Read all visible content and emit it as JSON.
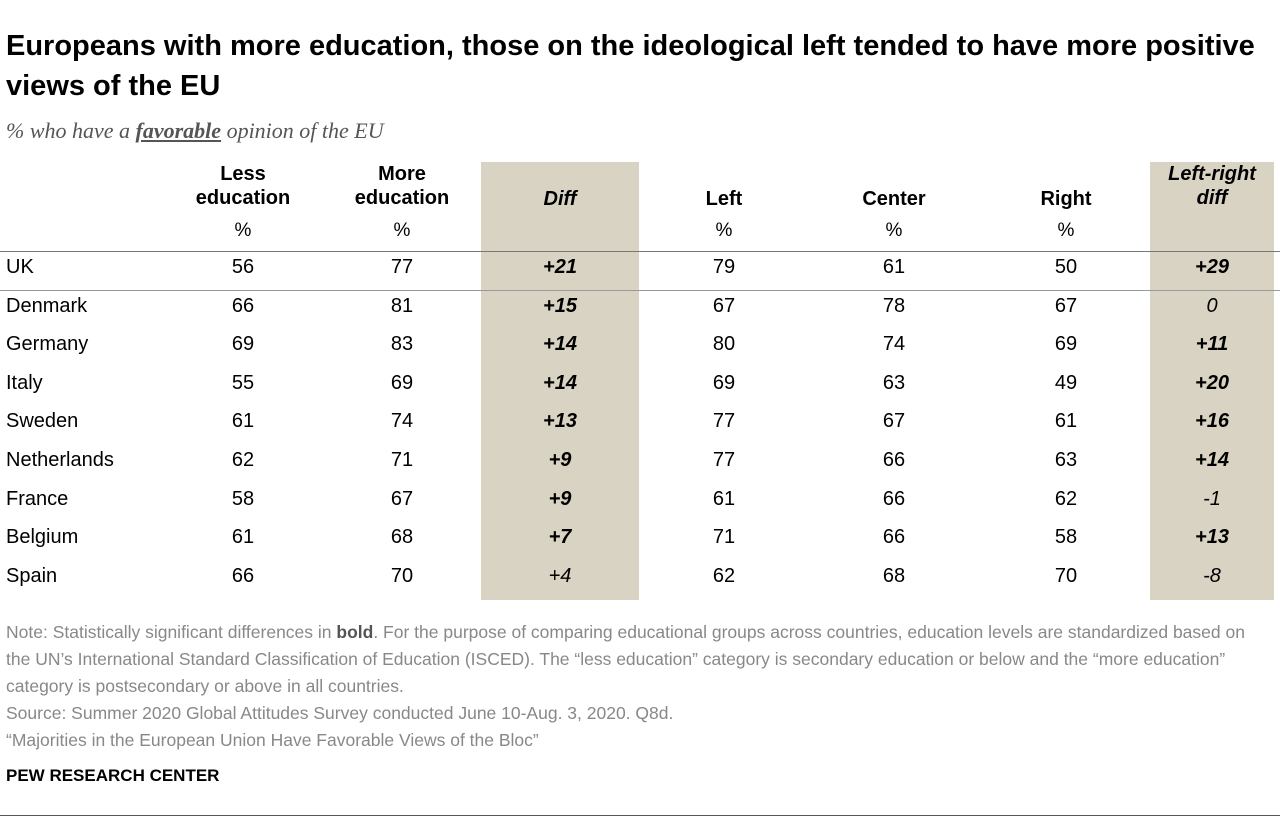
{
  "title": "Europeans with more education, those on the ideological left tended to have more positive views of the EU",
  "subtitle": {
    "before": "% who have a ",
    "keyword": "favorable",
    "after": " opinion of the EU"
  },
  "columns": [
    {
      "key": "less_edu",
      "label": "Less\neducation",
      "unit": "%",
      "shaded": false,
      "italic": false
    },
    {
      "key": "more_edu",
      "label": "More\neducation",
      "unit": "%",
      "shaded": false,
      "italic": false
    },
    {
      "key": "edu_diff",
      "label": "Diff",
      "unit": "",
      "shaded": true,
      "italic": true
    },
    {
      "key": "left",
      "label": "Left",
      "unit": "%",
      "shaded": false,
      "italic": false
    },
    {
      "key": "center",
      "label": "Center",
      "unit": "%",
      "shaded": false,
      "italic": false
    },
    {
      "key": "right",
      "label": "Right",
      "unit": "%",
      "shaded": false,
      "italic": false
    },
    {
      "key": "lr_diff",
      "label": "Left-right\ndiff",
      "unit": "",
      "shaded": true,
      "italic": true
    }
  ],
  "chart_data": {
    "type": "table",
    "title": "Europeans with more education, those on the ideological left tended to have more positive views of the EU",
    "subtitle": "% who have a favorable opinion of the EU",
    "headers": [
      "Less education",
      "More education",
      "Diff",
      "Left",
      "Center",
      "Right",
      "Left-right diff"
    ],
    "rows": [
      {
        "country": "UK",
        "values": [
          "56",
          "77",
          "+21",
          "79",
          "61",
          "50",
          "+29"
        ],
        "sig": [
          false,
          false,
          true,
          false,
          false,
          false,
          true
        ]
      },
      {
        "country": "Denmark",
        "values": [
          "66",
          "81",
          "+15",
          "67",
          "78",
          "67",
          "0"
        ],
        "sig": [
          false,
          false,
          true,
          false,
          false,
          false,
          false
        ]
      },
      {
        "country": "Germany",
        "values": [
          "69",
          "83",
          "+14",
          "80",
          "74",
          "69",
          "+11"
        ],
        "sig": [
          false,
          false,
          true,
          false,
          false,
          false,
          true
        ]
      },
      {
        "country": "Italy",
        "values": [
          "55",
          "69",
          "+14",
          "69",
          "63",
          "49",
          "+20"
        ],
        "sig": [
          false,
          false,
          true,
          false,
          false,
          false,
          true
        ]
      },
      {
        "country": "Sweden",
        "values": [
          "61",
          "74",
          "+13",
          "77",
          "67",
          "61",
          "+16"
        ],
        "sig": [
          false,
          false,
          true,
          false,
          false,
          false,
          true
        ]
      },
      {
        "country": "Netherlands",
        "values": [
          "62",
          "71",
          "+9",
          "77",
          "66",
          "63",
          "+14"
        ],
        "sig": [
          false,
          false,
          true,
          false,
          false,
          false,
          true
        ]
      },
      {
        "country": "France",
        "values": [
          "58",
          "67",
          "+9",
          "61",
          "66",
          "62",
          "-1"
        ],
        "sig": [
          false,
          false,
          true,
          false,
          false,
          false,
          false
        ]
      },
      {
        "country": "Belgium",
        "values": [
          "61",
          "68",
          "+7",
          "71",
          "66",
          "58",
          "+13"
        ],
        "sig": [
          false,
          false,
          true,
          false,
          false,
          false,
          true
        ]
      },
      {
        "country": "Spain",
        "values": [
          "66",
          "70",
          "+4",
          "62",
          "68",
          "70",
          "-8"
        ],
        "sig": [
          false,
          false,
          false,
          false,
          false,
          false,
          false
        ]
      }
    ]
  },
  "notes": {
    "note_prefix": "Note: Statistically significant differences in ",
    "note_bold": "bold",
    "note_rest": ".  For the purpose of comparing educational groups across countries, education levels are standardized based on the UN’s International Standard Classification of Education (ISCED). The “less education” category is secondary education or below and the “more education” category is postsecondary or above in all countries.",
    "source": "Source: Summer 2020 Global Attitudes Survey conducted June 10-Aug. 3, 2020. Q8d.",
    "report": "“Majorities in the European Union Have Favorable Views of the Bloc”"
  },
  "brand": "PEW RESEARCH CENTER",
  "colors": {
    "shade": "#d8d3c2",
    "note_text": "#888888"
  }
}
